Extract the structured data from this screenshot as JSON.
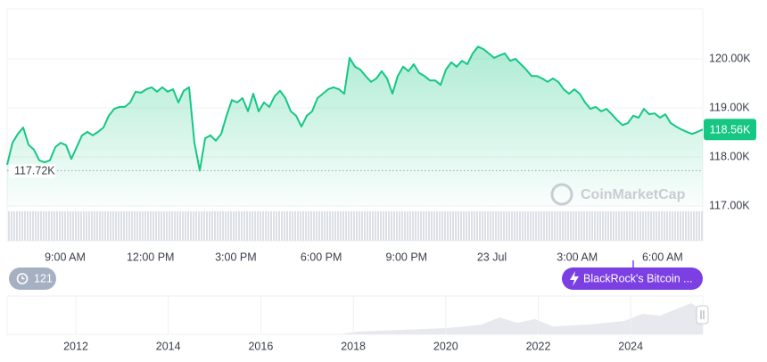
{
  "chart_data": {
    "type": "line",
    "series": [
      {
        "name": "Price",
        "color": "#16c784",
        "values": [
          117840,
          118290,
          118470,
          118600,
          118250,
          118150,
          117930,
          117890,
          117930,
          118200,
          118290,
          118240,
          117960,
          118200,
          118440,
          118510,
          118440,
          118510,
          118600,
          118840,
          118980,
          119020,
          119020,
          119110,
          119330,
          119310,
          119380,
          119420,
          119330,
          119420,
          119330,
          119380,
          119110,
          119350,
          119420,
          118290,
          117720,
          118380,
          118440,
          118330,
          118470,
          118840,
          119160,
          119110,
          119200,
          118930,
          119290,
          118930,
          119110,
          119020,
          119240,
          119350,
          119200,
          118930,
          118840,
          118620,
          118840,
          118930,
          119200,
          119290,
          119380,
          119420,
          119380,
          119290,
          120020,
          119840,
          119780,
          119650,
          119530,
          119600,
          119750,
          119600,
          119290,
          119650,
          119840,
          119750,
          119890,
          119710,
          119650,
          119560,
          119560,
          119470,
          119780,
          119930,
          119840,
          119960,
          119890,
          120110,
          120250,
          120200,
          120110,
          120020,
          120070,
          120110,
          119960,
          120000,
          119890,
          119780,
          119650,
          119650,
          119600,
          119530,
          119600,
          119530,
          119380,
          119290,
          119380,
          119290,
          119110,
          118980,
          119020,
          118930,
          118980,
          118870,
          118750,
          118650,
          118690,
          118840,
          118800,
          118980,
          118870,
          118890,
          118800,
          118870,
          118690,
          118620,
          118560,
          118510,
          118470,
          118510,
          118560
        ]
      }
    ],
    "ylim": [
      116300,
      121000
    ],
    "yticks": [
      {
        "value": 117000,
        "label": "117.00K"
      },
      {
        "value": 118000,
        "label": "118.00K"
      },
      {
        "value": 119000,
        "label": "119.00K"
      },
      {
        "value": 120000,
        "label": "120.00K"
      }
    ],
    "grid": true,
    "x_labels": [
      "9:00 AM",
      "12:00 PM",
      "3:00 PM",
      "6:00 PM",
      "9:00 PM",
      "23 Jul",
      "3:00 AM",
      "6:00 AM"
    ],
    "current_price": {
      "value": 118560,
      "label": "118.56K"
    },
    "low_price": {
      "value": 117720,
      "label": "117.72K"
    },
    "watermark": "CoinMarketCap",
    "news_count": 121,
    "news_headline": "BlackRock's Bitcoin ...",
    "navigator_labels": [
      "2012",
      "2014",
      "2016",
      "2018",
      "2020",
      "2022",
      "2024"
    ]
  }
}
